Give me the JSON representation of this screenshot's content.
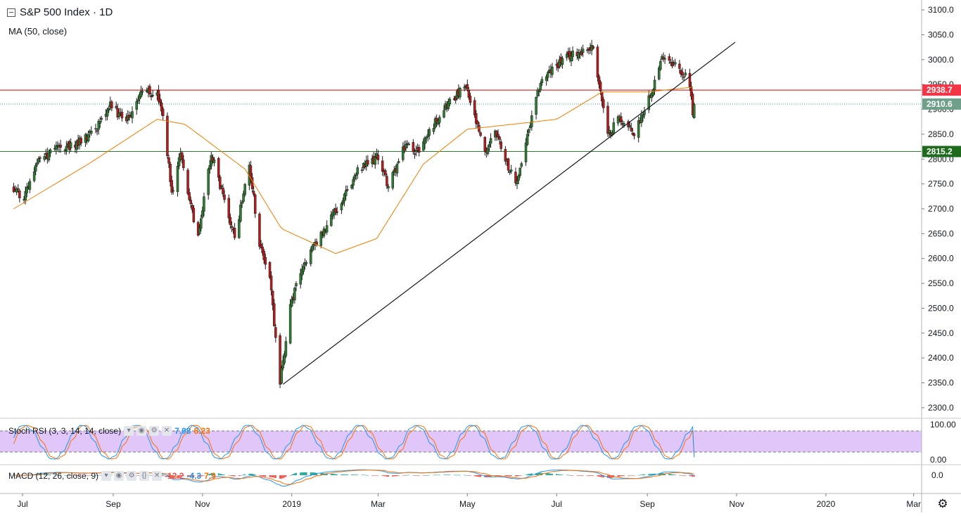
{
  "legend": {
    "title": "S&P 500 Index · 1D",
    "ma_label": "MA (50, close)"
  },
  "indicators": {
    "stoch": {
      "label": "Stoch RSI (3, 3, 14, 14, close)",
      "k": "7.08",
      "d": "8.23"
    },
    "macd": {
      "label": "MACD (12, 26, close, 9)",
      "hist": "-12.2",
      "macd": "-4.3",
      "signal": "7.9"
    }
  },
  "price_axis": {
    "ticks": [
      "3100.0",
      "3050.0",
      "3000.0",
      "2950.0",
      "2900.0",
      "2850.0",
      "2800.0",
      "2750.0",
      "2700.0",
      "2650.0",
      "2600.0",
      "2550.0",
      "2500.0",
      "2450.0",
      "2400.0",
      "2350.0",
      "2300.0"
    ]
  },
  "stoch_axis": {
    "ticks": [
      "100.00",
      "0.00"
    ]
  },
  "macd_axis": {
    "ticks": [
      "0.0"
    ]
  },
  "time_axis": {
    "ticks": [
      "Jul",
      "Sep",
      "Nov",
      "2019",
      "Mar",
      "May",
      "Jul",
      "Sep",
      "Nov",
      "2020",
      "Mar"
    ]
  },
  "price_labels": [
    {
      "text": "2938.7",
      "color": "#f23645"
    },
    {
      "text": "2910.6",
      "color": "#6fa08a"
    },
    {
      "text": "2815.2",
      "color": "#1e6b1e"
    }
  ],
  "colors": {
    "up": "#2e7d32",
    "down": "#b71c1c",
    "ma": "#f57c00",
    "k_line": "#2196f3",
    "d_line": "#ff6d00",
    "stoch_band": "#e1c6f9"
  },
  "chart_data": {
    "type": "candlestick",
    "title": "S&P 500 Index · 1D",
    "x_range": [
      "2018-06",
      "2020-03"
    ],
    "y_range": [
      2290,
      3110
    ],
    "horizontal_levels": [
      2938.7,
      2910.6,
      2815.2
    ],
    "trendline": {
      "from": {
        "date": "2018-12-26",
        "price": 2347
      },
      "to": {
        "date": "2019-10-31",
        "price": 3035
      }
    },
    "anchors": [
      {
        "date": "2018-06-25",
        "price": 2740
      },
      {
        "date": "2018-07-02",
        "price": 2720
      },
      {
        "date": "2018-07-10",
        "price": 2790
      },
      {
        "date": "2018-07-25",
        "price": 2820
      },
      {
        "date": "2018-08-10",
        "price": 2835
      },
      {
        "date": "2018-08-20",
        "price": 2860
      },
      {
        "date": "2018-08-29",
        "price": 2910
      },
      {
        "date": "2018-09-10",
        "price": 2875
      },
      {
        "date": "2018-09-20",
        "price": 2935
      },
      {
        "date": "2018-10-01",
        "price": 2930
      },
      {
        "date": "2018-10-05",
        "price": 2890
      },
      {
        "date": "2018-10-11",
        "price": 2730
      },
      {
        "date": "2018-10-17",
        "price": 2810
      },
      {
        "date": "2018-10-29",
        "price": 2640
      },
      {
        "date": "2018-11-07",
        "price": 2810
      },
      {
        "date": "2018-11-12",
        "price": 2760
      },
      {
        "date": "2018-11-23",
        "price": 2640
      },
      {
        "date": "2018-12-03",
        "price": 2790
      },
      {
        "date": "2018-12-10",
        "price": 2630
      },
      {
        "date": "2018-12-17",
        "price": 2560
      },
      {
        "date": "2018-12-24",
        "price": 2350
      },
      {
        "date": "2018-12-31",
        "price": 2505
      },
      {
        "date": "2019-01-10",
        "price": 2595
      },
      {
        "date": "2019-01-25",
        "price": 2665
      },
      {
        "date": "2019-02-15",
        "price": 2775
      },
      {
        "date": "2019-03-01",
        "price": 2805
      },
      {
        "date": "2019-03-08",
        "price": 2745
      },
      {
        "date": "2019-03-20",
        "price": 2830
      },
      {
        "date": "2019-03-28",
        "price": 2815
      },
      {
        "date": "2019-04-15",
        "price": 2905
      },
      {
        "date": "2019-04-30",
        "price": 2945
      },
      {
        "date": "2019-05-13",
        "price": 2810
      },
      {
        "date": "2019-05-20",
        "price": 2860
      },
      {
        "date": "2019-06-03",
        "price": 2745
      },
      {
        "date": "2019-06-20",
        "price": 2955
      },
      {
        "date": "2019-07-03",
        "price": 2995
      },
      {
        "date": "2019-07-15",
        "price": 3015
      },
      {
        "date": "2019-07-26",
        "price": 3025
      },
      {
        "date": "2019-08-05",
        "price": 2845
      },
      {
        "date": "2019-08-12",
        "price": 2885
      },
      {
        "date": "2019-08-23",
        "price": 2850
      },
      {
        "date": "2019-09-04",
        "price": 2940
      },
      {
        "date": "2019-09-12",
        "price": 3010
      },
      {
        "date": "2019-09-20",
        "price": 2990
      },
      {
        "date": "2019-09-27",
        "price": 2965
      },
      {
        "date": "2019-10-01",
        "price": 2935
      },
      {
        "date": "2019-10-02",
        "price": 2890
      },
      {
        "date": "2019-10-03",
        "price": 2910
      }
    ],
    "ma50_anchors": [
      {
        "date": "2018-06-25",
        "price": 2700
      },
      {
        "date": "2018-08-15",
        "price": 2790
      },
      {
        "date": "2018-10-01",
        "price": 2880
      },
      {
        "date": "2018-10-20",
        "price": 2870
      },
      {
        "date": "2018-11-30",
        "price": 2780
      },
      {
        "date": "2018-12-25",
        "price": 2660
      },
      {
        "date": "2019-01-31",
        "price": 2610
      },
      {
        "date": "2019-02-28",
        "price": 2640
      },
      {
        "date": "2019-04-01",
        "price": 2790
      },
      {
        "date": "2019-05-01",
        "price": 2860
      },
      {
        "date": "2019-06-01",
        "price": 2870
      },
      {
        "date": "2019-07-01",
        "price": 2880
      },
      {
        "date": "2019-08-01",
        "price": 2935
      },
      {
        "date": "2019-09-01",
        "price": 2935
      },
      {
        "date": "2019-10-03",
        "price": 2945
      }
    ]
  }
}
